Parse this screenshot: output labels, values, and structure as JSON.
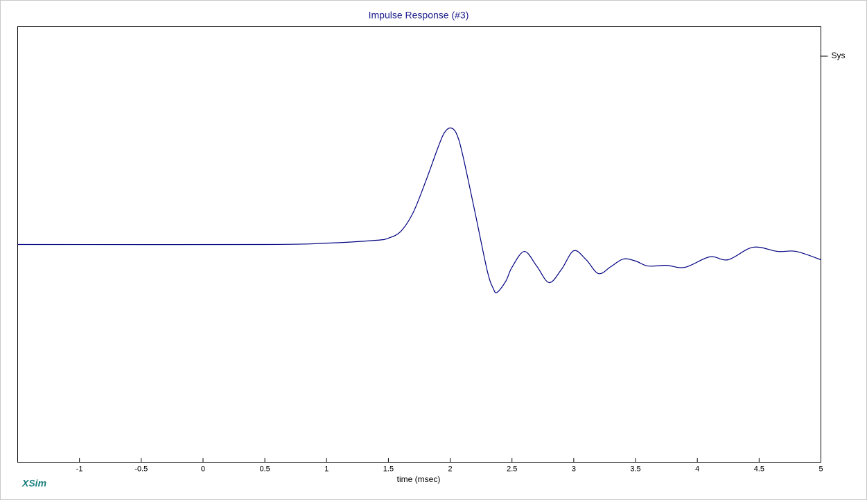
{
  "chart_data": {
    "type": "line",
    "title": "Impulse Response (#3)",
    "xlabel": "time (msec)",
    "watermark": "XSim",
    "x": [
      -1.5,
      0.5,
      1.0,
      1.4,
      1.5,
      1.6,
      1.7,
      1.8,
      1.9,
      1.95,
      2.0,
      2.05,
      2.1,
      2.2,
      2.3,
      2.35,
      2.38,
      2.45,
      2.5,
      2.6,
      2.7,
      2.8,
      2.9,
      3.0,
      3.1,
      3.2,
      3.3,
      3.4,
      3.5,
      3.6,
      3.75,
      3.9,
      4.1,
      4.25,
      4.45,
      4.65,
      4.8,
      5.0
    ],
    "series": [
      {
        "name": "Sys",
        "color": "#000080",
        "values": [
          0,
          0,
          0.006,
          0.019,
          0.029,
          0.06,
          0.146,
          0.287,
          0.443,
          0.51,
          0.535,
          0.51,
          0.414,
          0.15,
          -0.121,
          -0.204,
          -0.22,
          -0.169,
          -0.105,
          -0.032,
          -0.099,
          -0.175,
          -0.115,
          -0.029,
          -0.07,
          -0.134,
          -0.102,
          -0.067,
          -0.076,
          -0.099,
          -0.096,
          -0.105,
          -0.057,
          -0.07,
          -0.013,
          -0.032,
          -0.032,
          -0.07
        ]
      }
    ],
    "xlim": [
      -1.5,
      5
    ],
    "xticks": [
      -1,
      -0.5,
      0,
      0.5,
      1,
      1.5,
      2,
      2.5,
      3,
      3.5,
      4,
      4.5,
      5
    ],
    "ylim": [
      -1,
      1
    ],
    "legend": "right"
  }
}
